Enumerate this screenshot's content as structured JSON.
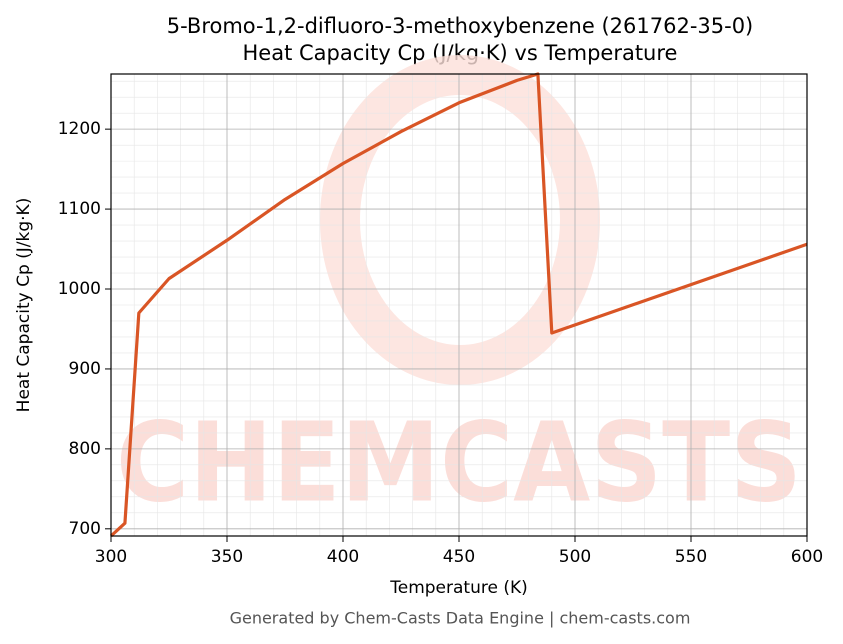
{
  "chart_data": {
    "type": "line",
    "title": "5-Bromo-1,2-difluoro-3-methoxybenzene (261762-35-0)",
    "subtitle": "Heat Capacity Cp (J/kg·K) vs Temperature",
    "x_label": "Temperature (K)",
    "y_label": "Heat Capacity Cp (J/kg·K)",
    "footer": "Generated by Chem-Casts Data Engine | chem-casts.com",
    "watermark": "CHEMCASTS",
    "x": [
      300,
      306,
      312,
      325,
      350,
      375,
      400,
      425,
      450,
      475,
      484,
      490,
      600
    ],
    "series": [
      {
        "name": "Cp",
        "color": "#d95525",
        "values": [
          691,
          707,
          970,
          1013,
          1061,
          1112,
          1157,
          1197,
          1233,
          1261,
          1269,
          945,
          1056
        ]
      }
    ],
    "xlim": [
      300,
      600
    ],
    "xticks": [
      300,
      350,
      400,
      450,
      500,
      550,
      600
    ],
    "ylim": [
      691,
      1269
    ],
    "yticks": [
      700,
      800,
      900,
      1000,
      1100,
      1200
    ],
    "grid": true
  }
}
